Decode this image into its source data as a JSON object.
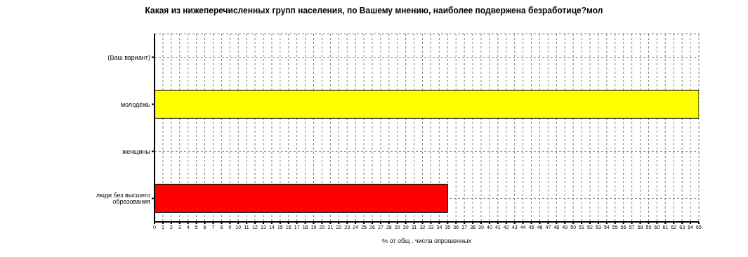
{
  "chart_data": {
    "type": "bar",
    "orientation": "horizontal",
    "title": "Какая из нижеперечисленных групп населения, по Вашему мнению, наиболее подвержена безработице?мол",
    "xlabel": "% от общ . числа опрошенных",
    "categories": [
      "(Ваш вариант)",
      "молодёжь",
      "женщины",
      "люди без высшего образования"
    ],
    "values": [
      0,
      65,
      0,
      35
    ],
    "colors": [
      "#000080",
      "#ffff00",
      "#000000",
      "#ff0000"
    ],
    "xlim": [
      0,
      65
    ],
    "xticks": [
      0,
      1,
      2,
      3,
      4,
      5,
      6,
      7,
      8,
      9,
      10,
      11,
      12,
      13,
      14,
      15,
      16,
      17,
      18,
      19,
      20,
      21,
      22,
      23,
      24,
      25,
      26,
      27,
      28,
      29,
      30,
      31,
      32,
      33,
      34,
      35,
      36,
      37,
      38,
      39,
      40,
      41,
      42,
      43,
      44,
      45,
      46,
      47,
      48,
      49,
      50,
      51,
      52,
      53,
      54,
      55,
      56,
      57,
      58,
      59,
      60,
      61,
      62,
      63,
      64,
      65
    ],
    "grid": true,
    "legend": false
  }
}
